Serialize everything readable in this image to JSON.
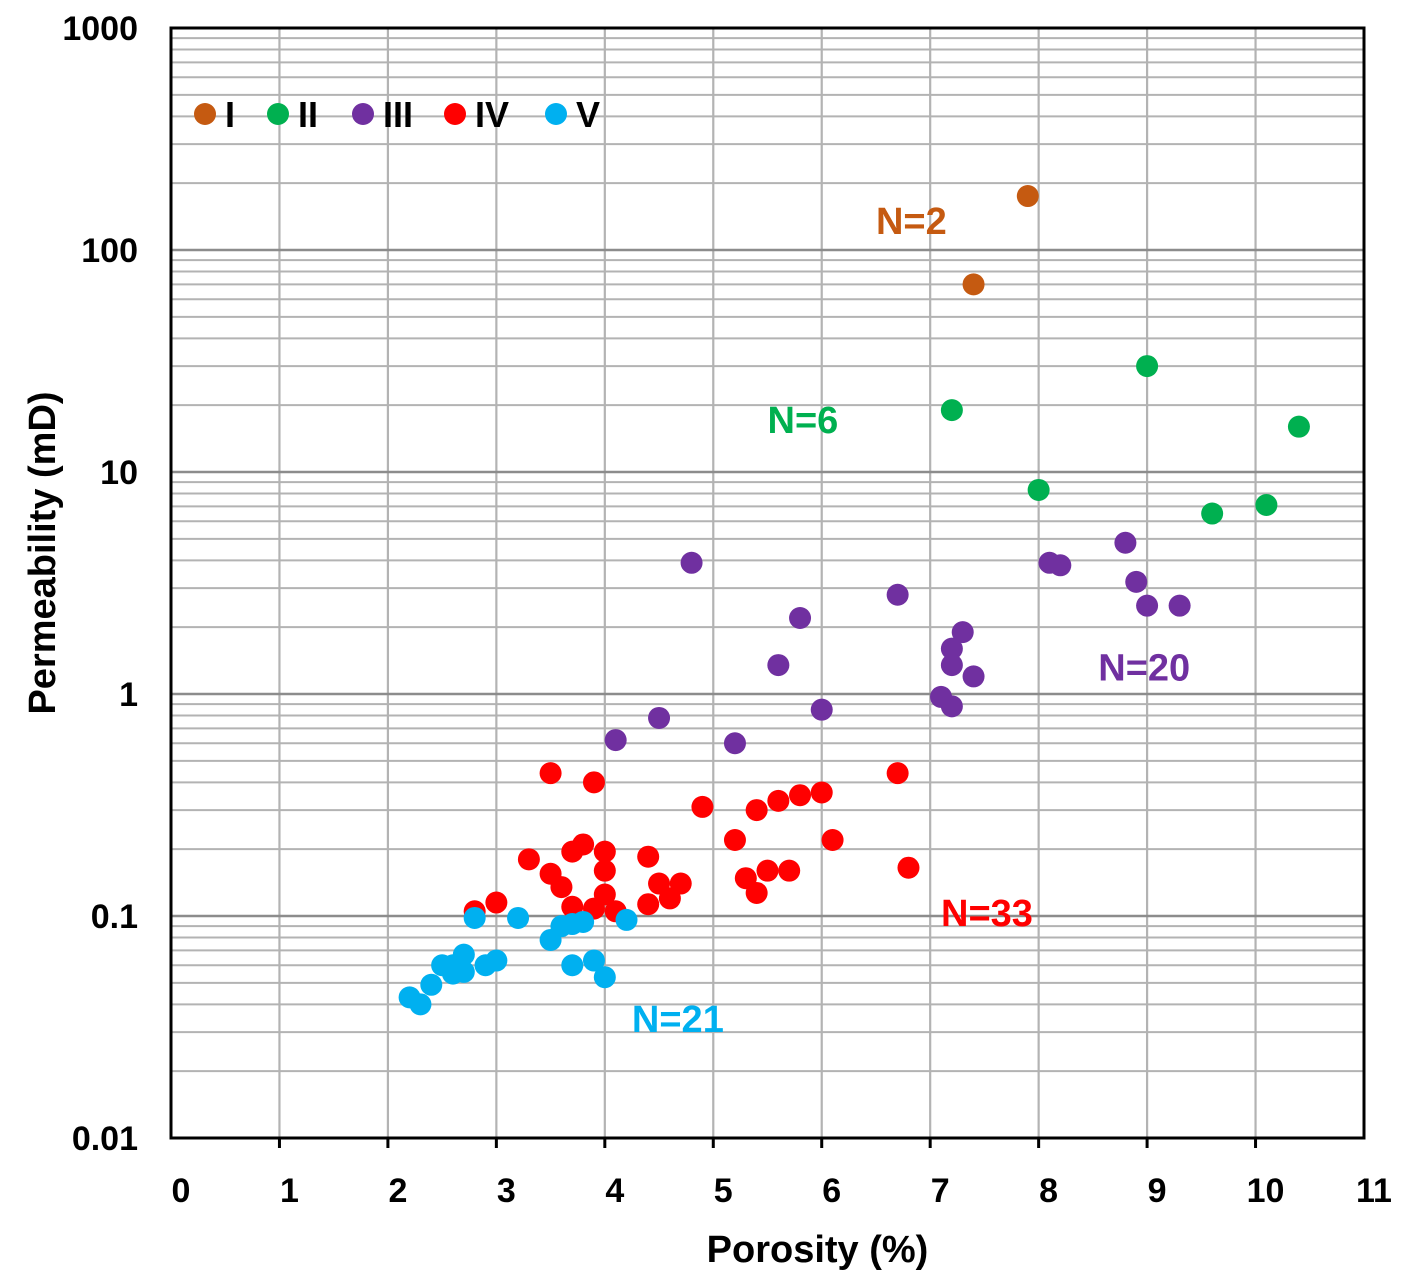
{
  "chart_data": {
    "type": "scatter",
    "title": "",
    "xlabel": "Porosity (%)",
    "ylabel": "Permeability (mD)",
    "xlim": [
      0,
      11
    ],
    "ylim": [
      0.01,
      1000
    ],
    "yscale": "log",
    "grid": true,
    "legend_position": "top-left",
    "xticks": [
      "0",
      "1",
      "2",
      "3",
      "4",
      "5",
      "6",
      "7",
      "8",
      "9",
      "10",
      "11"
    ],
    "yticks": [
      "0.01",
      "0.1",
      "1",
      "10",
      "100",
      "1000"
    ],
    "series": [
      {
        "name": "I",
        "color": "#C55A11",
        "points": [
          [
            7.9,
            175
          ],
          [
            7.4,
            70
          ]
        ],
        "label": "N=2"
      },
      {
        "name": "II",
        "color": "#00B050",
        "points": [
          [
            9.0,
            30
          ],
          [
            7.2,
            19
          ],
          [
            10.4,
            16
          ],
          [
            8.0,
            8.3
          ],
          [
            9.6,
            6.5
          ],
          [
            10.1,
            7.1
          ]
        ],
        "label": "N=6"
      },
      {
        "name": "III",
        "color": "#7030A0",
        "points": [
          [
            4.8,
            3.9
          ],
          [
            8.1,
            3.9
          ],
          [
            8.2,
            3.8
          ],
          [
            8.8,
            4.8
          ],
          [
            8.9,
            3.2
          ],
          [
            9.0,
            2.5
          ],
          [
            9.3,
            2.5
          ],
          [
            6.7,
            2.8
          ],
          [
            5.8,
            2.2
          ],
          [
            7.3,
            1.9
          ],
          [
            7.2,
            1.6
          ],
          [
            7.2,
            1.35
          ],
          [
            5.6,
            1.35
          ],
          [
            7.4,
            1.2
          ],
          [
            7.1,
            0.97
          ],
          [
            7.2,
            0.88
          ],
          [
            6.0,
            0.85
          ],
          [
            4.5,
            0.78
          ],
          [
            4.1,
            0.62
          ],
          [
            5.2,
            0.6
          ]
        ],
        "label": "N=20"
      },
      {
        "name": "IV",
        "color": "#FF0000",
        "points": [
          [
            3.5,
            0.44
          ],
          [
            3.9,
            0.4
          ],
          [
            6.7,
            0.44
          ],
          [
            5.8,
            0.35
          ],
          [
            6.0,
            0.36
          ],
          [
            5.6,
            0.33
          ],
          [
            4.9,
            0.31
          ],
          [
            5.4,
            0.3
          ],
          [
            5.2,
            0.22
          ],
          [
            6.1,
            0.22
          ],
          [
            3.8,
            0.21
          ],
          [
            3.7,
            0.195
          ],
          [
            4.0,
            0.195
          ],
          [
            3.3,
            0.18
          ],
          [
            4.4,
            0.185
          ],
          [
            4.0,
            0.16
          ],
          [
            3.5,
            0.155
          ],
          [
            5.5,
            0.16
          ],
          [
            5.7,
            0.16
          ],
          [
            6.8,
            0.165
          ],
          [
            5.3,
            0.148
          ],
          [
            3.6,
            0.135
          ],
          [
            4.5,
            0.14
          ],
          [
            4.7,
            0.14
          ],
          [
            4.0,
            0.125
          ],
          [
            5.4,
            0.127
          ],
          [
            3.0,
            0.115
          ],
          [
            4.6,
            0.12
          ],
          [
            3.7,
            0.11
          ],
          [
            2.8,
            0.105
          ],
          [
            4.1,
            0.105
          ],
          [
            3.9,
            0.108
          ],
          [
            4.4,
            0.113
          ]
        ],
        "label": "N=33"
      },
      {
        "name": "V",
        "color": "#00B0F0",
        "points": [
          [
            2.8,
            0.098
          ],
          [
            3.2,
            0.098
          ],
          [
            4.2,
            0.096
          ],
          [
            3.8,
            0.094
          ],
          [
            3.7,
            0.092
          ],
          [
            3.6,
            0.09
          ],
          [
            3.5,
            0.078
          ],
          [
            2.7,
            0.067
          ],
          [
            3.9,
            0.063
          ],
          [
            3.0,
            0.063
          ],
          [
            2.9,
            0.06
          ],
          [
            2.5,
            0.06
          ],
          [
            2.6,
            0.06
          ],
          [
            3.7,
            0.06
          ],
          [
            2.6,
            0.055
          ],
          [
            2.7,
            0.056
          ],
          [
            4.0,
            0.053
          ],
          [
            2.4,
            0.049
          ],
          [
            2.2,
            0.043
          ],
          [
            2.3,
            0.04
          ],
          [
            2.6,
            0.058
          ]
        ],
        "label": "N=21"
      }
    ],
    "annotations": [
      {
        "text": "N=2",
        "color": "#C55A11",
        "x": 6.5,
        "y": 118
      },
      {
        "text": "N=6",
        "color": "#00B050",
        "x": 5.5,
        "y": 15
      },
      {
        "text": "N=20",
        "color": "#7030A0",
        "x": 8.55,
        "y": 1.15
      },
      {
        "text": "N=33",
        "color": "#FF0000",
        "x": 7.1,
        "y": 0.09
      },
      {
        "text": "N=21",
        "color": "#00B0F0",
        "x": 4.25,
        "y": 0.03
      }
    ]
  }
}
